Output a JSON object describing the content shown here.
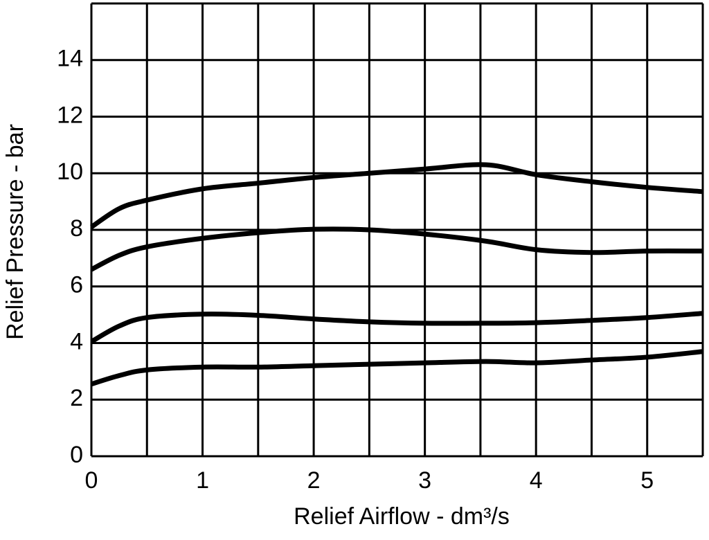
{
  "chart_data": {
    "type": "line",
    "x_label": "Relief Airflow - dm³/s",
    "y_label": "Relief Pressure - bar",
    "xlim": [
      0,
      5.5
    ],
    "xticks": [
      0,
      1,
      2,
      3,
      4,
      5
    ],
    "x_minor_grid": [
      0.5,
      1.5,
      2.5,
      3.5,
      4.5,
      5.5
    ],
    "ylim": [
      0,
      16
    ],
    "yticks": [
      0,
      2,
      4,
      6,
      8,
      10,
      12,
      14
    ],
    "y_minor_grid": [
      16
    ],
    "grid": true,
    "x": [
      0,
      0.25,
      0.5,
      1,
      1.5,
      2,
      2.5,
      3,
      3.55,
      4,
      4.5,
      5,
      5.5
    ],
    "series": [
      {
        "color": "#000000",
        "values": [
          8.1,
          8.75,
          9.05,
          9.45,
          9.65,
          9.85,
          10.0,
          10.15,
          10.3,
          9.95,
          9.7,
          9.5,
          9.35
        ]
      },
      {
        "color": "#000000",
        "values": [
          6.6,
          7.1,
          7.4,
          7.7,
          7.9,
          8.02,
          8.0,
          7.85,
          7.6,
          7.3,
          7.2,
          7.25,
          7.25
        ]
      },
      {
        "color": "#000000",
        "values": [
          4.05,
          4.6,
          4.9,
          5.02,
          4.98,
          4.85,
          4.75,
          4.7,
          4.7,
          4.72,
          4.8,
          4.9,
          5.05
        ]
      },
      {
        "color": "#000000",
        "values": [
          2.55,
          2.85,
          3.05,
          3.15,
          3.15,
          3.2,
          3.25,
          3.3,
          3.35,
          3.3,
          3.4,
          3.5,
          3.7
        ]
      }
    ]
  }
}
